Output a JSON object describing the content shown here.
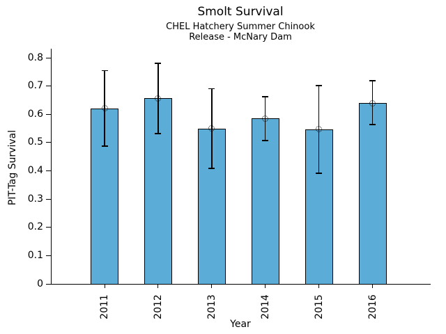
{
  "chart_data": {
    "type": "bar",
    "title": "Smolt Survival",
    "subtitle_line1": "CHEL Hatchery Summer Chinook",
    "subtitle_line2": "Release - McNary Dam",
    "xlabel": "Year",
    "ylabel": "PIT-Tag Survival",
    "categories": [
      "2011",
      "2012",
      "2013",
      "2014",
      "2015",
      "2016"
    ],
    "values": [
      0.621,
      0.657,
      0.549,
      0.585,
      0.547,
      0.64
    ],
    "error_low": [
      0.487,
      0.532,
      0.409,
      0.507,
      0.391,
      0.564
    ],
    "error_high": [
      0.754,
      0.78,
      0.691,
      0.662,
      0.701,
      0.719
    ],
    "yticks": [
      0,
      0.1,
      0.2,
      0.3,
      0.4,
      0.5,
      0.6,
      0.7,
      0.8
    ],
    "ytick_labels": [
      "0",
      "0.1",
      "0.2",
      "0.3",
      "0.4",
      "0.5",
      "0.6",
      "0.7",
      "0.8"
    ],
    "ylim": [
      0,
      0.832
    ],
    "grid": false,
    "legend": "none",
    "bar_color": "#5BACD6",
    "bar_edge_color": "#000000",
    "marker": "open-circle",
    "error_bar_color": "#000000"
  }
}
